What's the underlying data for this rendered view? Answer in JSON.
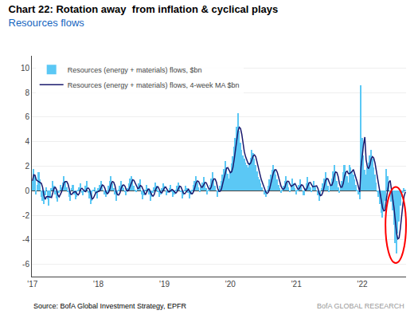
{
  "chart_data": {
    "type": "bar",
    "title": "Chart 22: Rotation away  from inflation & cyclical plays",
    "subtitle": "Resources flows",
    "annotations": [
      "Source: BofA Global Investment Strategy, EPFR",
      "BofA GLOBAL RESEARCH"
    ],
    "categories": [
      "'17",
      null,
      null,
      null,
      null,
      null,
      null,
      null,
      null,
      null,
      null,
      null,
      null,
      null,
      null,
      null,
      null,
      null,
      null,
      null,
      null,
      null,
      null,
      null,
      null,
      null,
      null,
      null,
      null,
      null,
      null,
      null,
      null,
      null,
      null,
      null,
      null,
      null,
      null,
      null,
      null,
      null,
      null,
      null,
      null,
      null,
      null,
      null,
      null,
      null,
      null,
      null,
      "'18",
      null,
      null,
      null,
      null,
      null,
      null,
      null,
      null,
      null,
      null,
      null,
      null,
      null,
      null,
      null,
      null,
      null,
      null,
      null,
      null,
      null,
      null,
      null,
      null,
      null,
      null,
      null,
      null,
      null,
      null,
      null,
      null,
      null,
      null,
      null,
      null,
      null,
      null,
      null,
      null,
      null,
      null,
      null,
      null,
      null,
      null,
      null,
      null,
      null,
      null,
      null,
      "'19",
      null,
      null,
      null,
      null,
      null,
      null,
      null,
      null,
      null,
      null,
      null,
      null,
      null,
      null,
      null,
      null,
      null,
      null,
      null,
      null,
      null,
      null,
      null,
      null,
      null,
      null,
      null,
      null,
      null,
      null,
      null,
      null,
      null,
      null,
      null,
      null,
      null,
      null,
      null,
      null,
      null,
      null,
      null,
      null,
      null,
      null,
      null,
      null,
      null,
      null,
      null,
      "'20",
      null,
      null,
      null,
      null,
      null,
      null,
      null,
      null,
      null,
      null,
      null,
      null,
      null,
      null,
      null,
      null,
      null,
      null,
      null,
      null,
      null,
      null,
      null,
      null,
      null,
      null,
      null,
      null,
      null,
      null,
      null,
      null,
      null,
      null,
      null,
      null,
      null,
      null,
      null,
      null,
      null,
      null,
      null,
      null,
      null,
      null,
      null,
      null,
      null,
      null,
      null,
      "'21",
      null,
      null,
      null,
      null,
      null,
      null,
      null,
      null,
      null,
      null,
      null,
      null,
      null,
      null,
      null,
      null,
      null,
      null,
      null,
      null,
      null,
      null,
      null,
      null,
      null,
      null,
      null,
      null,
      null,
      null,
      null,
      null,
      null,
      null,
      null,
      null,
      null,
      null,
      null,
      null,
      null,
      null,
      null,
      null,
      null,
      null,
      null,
      null,
      null,
      null,
      null,
      "'22",
      null,
      null,
      null,
      null,
      null,
      null,
      null,
      null,
      null,
      null,
      null,
      null,
      null,
      null,
      null,
      null,
      null,
      null,
      null,
      null,
      null,
      null,
      null,
      null,
      null,
      null,
      null,
      null,
      null,
      null,
      null,
      null,
      null,
      null
    ],
    "series": [
      {
        "name": "Resources (energy + materials) flows, $bn",
        "type": "bar",
        "color": "#5BC8F5",
        "values": [
          0.8,
          1.8,
          1.2,
          -0.3,
          0.5,
          1.5,
          0.9,
          -0.5,
          -0.8,
          -1.1,
          -0.4,
          0.3,
          -0.7,
          -1.2,
          -0.5,
          0.2,
          0.8,
          0.4,
          -0.3,
          -0.6,
          -0.9,
          -0.2,
          0.5,
          0.3,
          0.7,
          1.2,
          0.8,
          0.3,
          -0.1,
          -0.5,
          -0.8,
          0.2,
          0.5,
          -0.3,
          -0.7,
          -0.5,
          0.1,
          0.3,
          0.6,
          -0.2,
          -0.4,
          -0.1,
          0.4,
          0.8,
          -0.2,
          -0.6,
          -1.1,
          -0.8,
          0.1,
          0.3,
          -0.2,
          -0.6,
          0.2,
          0.5,
          0.8,
          0.4,
          0.0,
          -0.3,
          -0.5,
          -0.2,
          0.4,
          0.8,
          1.2,
          0.6,
          0.2,
          -0.3,
          -0.8,
          -0.4,
          0.1,
          0.4,
          0.8,
          0.5,
          0.2,
          -0.1,
          -0.4,
          0.2,
          0.6,
          1.0,
          1.2,
          0.8,
          0.4,
          0.1,
          -0.1,
          0.3,
          0.6,
          0.9,
          -0.3,
          -0.7,
          -0.4,
          0.1,
          0.5,
          0.2,
          -0.3,
          -0.8,
          -0.5,
          -0.2,
          0.3,
          0.7,
          0.4,
          -0.1,
          -0.5,
          -0.3,
          0.2,
          0.6,
          0.4,
          0.0,
          -0.4,
          -0.2,
          0.2,
          0.5,
          -0.1,
          -0.5,
          -0.3,
          0.1,
          0.4,
          0.7,
          0.3,
          -0.1,
          -0.6,
          -0.4,
          0.1,
          0.4,
          0.2,
          -0.2,
          -0.6,
          -0.3,
          0.1,
          0.5,
          0.8,
          1.2,
          0.7,
          0.3,
          -0.1,
          0.3,
          0.7,
          1.1,
          0.6,
          0.2,
          -0.3,
          0.1,
          0.5,
          1.0,
          1.5,
          0.9,
          0.4,
          0.0,
          -0.5,
          -0.1,
          0.4,
          0.8,
          1.3,
          1.8,
          2.4,
          1.9,
          1.4,
          1.0,
          1.6,
          2.2,
          2.8,
          3.6,
          4.3,
          5.2,
          6.3,
          4.9,
          3.9,
          3.3,
          2.9,
          2.6,
          2.3,
          2.1,
          1.9,
          2.3,
          2.7,
          3.3,
          3.1,
          2.6,
          2.1,
          1.6,
          1.1,
          0.9,
          0.6,
          0.3,
          0.0,
          -0.3,
          -0.5,
          -0.1,
          0.4,
          0.9,
          1.3,
          1.7,
          2.1,
          1.7,
          1.3,
          0.9,
          0.5,
          0.2,
          -0.2,
          0.1,
          0.4,
          0.8,
          1.2,
          0.7,
          0.3,
          -0.1,
          0.5,
          1.0,
          0.6,
          0.2,
          -0.3,
          0.1,
          0.5,
          0.9,
          0.4,
          0.0,
          -0.4,
          0.2,
          0.6,
          1.1,
          0.7,
          0.3,
          -0.1,
          0.4,
          0.8,
          0.4,
          0.0,
          -0.4,
          -0.8,
          -0.4,
          0.2,
          0.6,
          1.0,
          1.5,
          0.9,
          0.4,
          -0.1,
          0.5,
          1.0,
          1.6,
          2.1,
          1.4,
          0.8,
          0.3,
          -0.2,
          0.3,
          0.8,
          1.5,
          2.1,
          1.6,
          1.2,
          0.7,
          2.1,
          1.9,
          1.6,
          1.3,
          0.9,
          0.5,
          0.1,
          -0.3,
          -0.7,
          8.6,
          4.3,
          2.9,
          1.7,
          1.3,
          1.9,
          2.3,
          2.9,
          3.3,
          2.6,
          1.9,
          1.3,
          0.7,
          -0.1,
          -0.5,
          -1.1,
          -1.8,
          -2.2,
          -1.5,
          -0.8,
          1.8,
          1.2,
          0.6,
          -0.3,
          -0.9,
          -1.6,
          -2.8,
          -4.3,
          -5.1,
          -3.5,
          -2.5,
          -1.2,
          -0.5,
          -0.2,
          0.2,
          0.1
        ]
      },
      {
        "name": "Resources (energy + materials) flows, 4-week MA $bn",
        "type": "line",
        "color": "#1a1a6e",
        "values": [
          0.8,
          1.3,
          1.266667,
          0.875,
          0.8,
          0.725,
          0.65,
          0.6,
          0.275,
          -0.375,
          -0.7,
          -0.5,
          -0.475,
          -0.5,
          -0.525,
          -0.55,
          -0.175,
          0.225,
          0.275,
          0.075,
          -0.35,
          -0.5,
          -0.3,
          -0.075,
          0.325,
          0.675,
          0.75,
          0.75,
          0.55,
          0.125,
          -0.275,
          -0.3,
          -0.15,
          -0.1,
          -0.075,
          -0.25,
          -0.35,
          -0.2,
          0.125,
          0.2,
          0.075,
          -0.025,
          -0.075,
          0.175,
          0.225,
          0.1,
          -0.275,
          -0.675,
          -0.6,
          -0.375,
          -0.15,
          -0.1,
          -0.075,
          -0.025,
          0.225,
          0.475,
          0.425,
          0.225,
          -0.1,
          -0.25,
          -0.15,
          0.125,
          0.55,
          0.75,
          0.7,
          0.425,
          -0.075,
          -0.325,
          -0.35,
          -0.175,
          0.225,
          0.45,
          0.475,
          0.35,
          0.05,
          -0.025,
          0.075,
          0.35,
          0.75,
          0.9,
          0.85,
          0.625,
          0.3,
          0.175,
          0.225,
          0.425,
          0.375,
          0.125,
          -0.125,
          -0.325,
          -0.125,
          0.1,
          0.125,
          -0.1,
          -0.35,
          -0.45,
          -0.3,
          0.075,
          0.3,
          0.325,
          0.125,
          -0.125,
          -0.175,
          0.0,
          0.225,
          0.3,
          0.15,
          -0.05,
          -0.1,
          0.025,
          0.1,
          0.025,
          -0.1,
          -0.2,
          -0.075,
          0.225,
          0.375,
          0.325,
          0.075,
          -0.2,
          -0.25,
          -0.125,
          0.075,
          0.125,
          -0.05,
          -0.225,
          -0.25,
          -0.075,
          0.275,
          0.65,
          0.8,
          0.75,
          0.525,
          0.3,
          0.3,
          0.5,
          0.675,
          0.65,
          0.4,
          0.15,
          0.125,
          0.325,
          0.775,
          0.975,
          0.95,
          0.7,
          0.2,
          -0.05,
          -0.05,
          0.15,
          0.6,
          1.075,
          1.575,
          1.85,
          1.875,
          1.675,
          1.475,
          1.55,
          1.9,
          2.55,
          3.225,
          3.975,
          4.85,
          5.175,
          5.075,
          4.6,
          3.75,
          3.175,
          2.775,
          2.475,
          2.225,
          2.15,
          2.25,
          2.55,
          2.85,
          2.925,
          2.775,
          2.35,
          1.85,
          1.425,
          1.05,
          0.725,
          0.45,
          0.15,
          -0.125,
          -0.225,
          -0.125,
          0.175,
          0.625,
          1.075,
          1.5,
          1.7,
          1.7,
          1.5,
          1.1,
          0.725,
          0.35,
          0.15,
          0.125,
          0.275,
          0.625,
          0.775,
          0.75,
          0.525,
          0.35,
          0.425,
          0.5,
          0.575,
          0.375,
          0.15,
          0.125,
          0.3,
          0.475,
          0.45,
          0.225,
          0.05,
          0.1,
          0.375,
          0.65,
          0.675,
          0.5,
          0.325,
          0.35,
          0.375,
          0.4,
          0.2,
          -0.2,
          -0.4,
          -0.35,
          -0.1,
          0.35,
          0.825,
          1.0,
          0.95,
          0.675,
          0.425,
          0.45,
          0.75,
          1.3,
          1.525,
          1.475,
          1.15,
          0.575,
          0.3,
          0.3,
          0.6,
          1.175,
          1.5,
          1.6,
          1.4,
          1.4,
          1.475,
          1.575,
          1.725,
          1.425,
          1.075,
          0.7,
          0.3,
          -0.1,
          1.925,
          2.975,
          3.775,
          4.375,
          2.55,
          1.95,
          1.8,
          2.1,
          2.6,
          2.775,
          2.675,
          2.275,
          1.625,
          0.95,
          0.35,
          -0.25,
          -0.875,
          -1.4,
          -1.65,
          -1.575,
          -0.675,
          0.175,
          0.7,
          0.825,
          0.15,
          -0.55,
          -1.4,
          -2.4,
          -3.45,
          -3.925,
          -3.85,
          -3.075,
          -1.925,
          -1.1,
          -0.425,
          -0.1
        ]
      }
    ],
    "ylim": [
      -7,
      11
    ],
    "yticks": [
      -6,
      -4,
      -2,
      0,
      2,
      4,
      6,
      8,
      10
    ],
    "grid": true,
    "legend": "upper left"
  }
}
